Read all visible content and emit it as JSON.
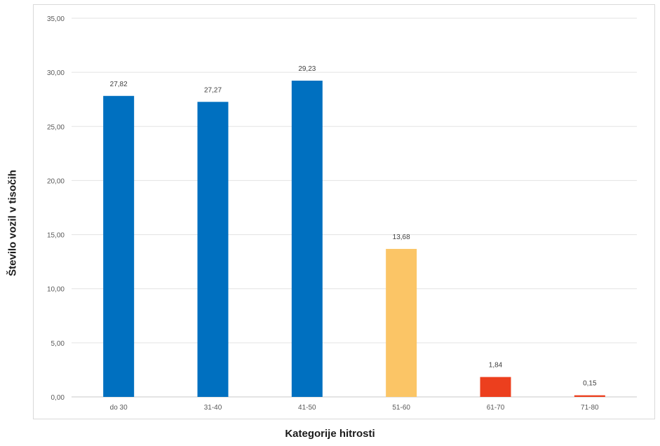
{
  "chart_data": {
    "type": "bar",
    "title": "",
    "xlabel": "Kategorije hitrosti",
    "ylabel": "Število vozil v tisočih",
    "categories": [
      "do 30",
      "31-40",
      "41-50",
      "51-60",
      "61-70",
      "71-80"
    ],
    "values": [
      27.82,
      27.27,
      29.23,
      13.68,
      1.84,
      0.15
    ],
    "value_labels": [
      "27,82",
      "27,27",
      "29,23",
      "13,68",
      "1,84",
      "0,15"
    ],
    "bar_colors": [
      "#0070c0",
      "#0070c0",
      "#0070c0",
      "#fbc566",
      "#ec3f1e",
      "#ec3f1e"
    ],
    "ylim": [
      0,
      35
    ],
    "yticks": [
      0,
      5,
      10,
      15,
      20,
      25,
      30,
      35
    ],
    "ytick_labels": [
      "0,00",
      "5,00",
      "10,00",
      "15,00",
      "20,00",
      "25,00",
      "30,00",
      "35,00"
    ],
    "grid": true,
    "legend": "none"
  }
}
